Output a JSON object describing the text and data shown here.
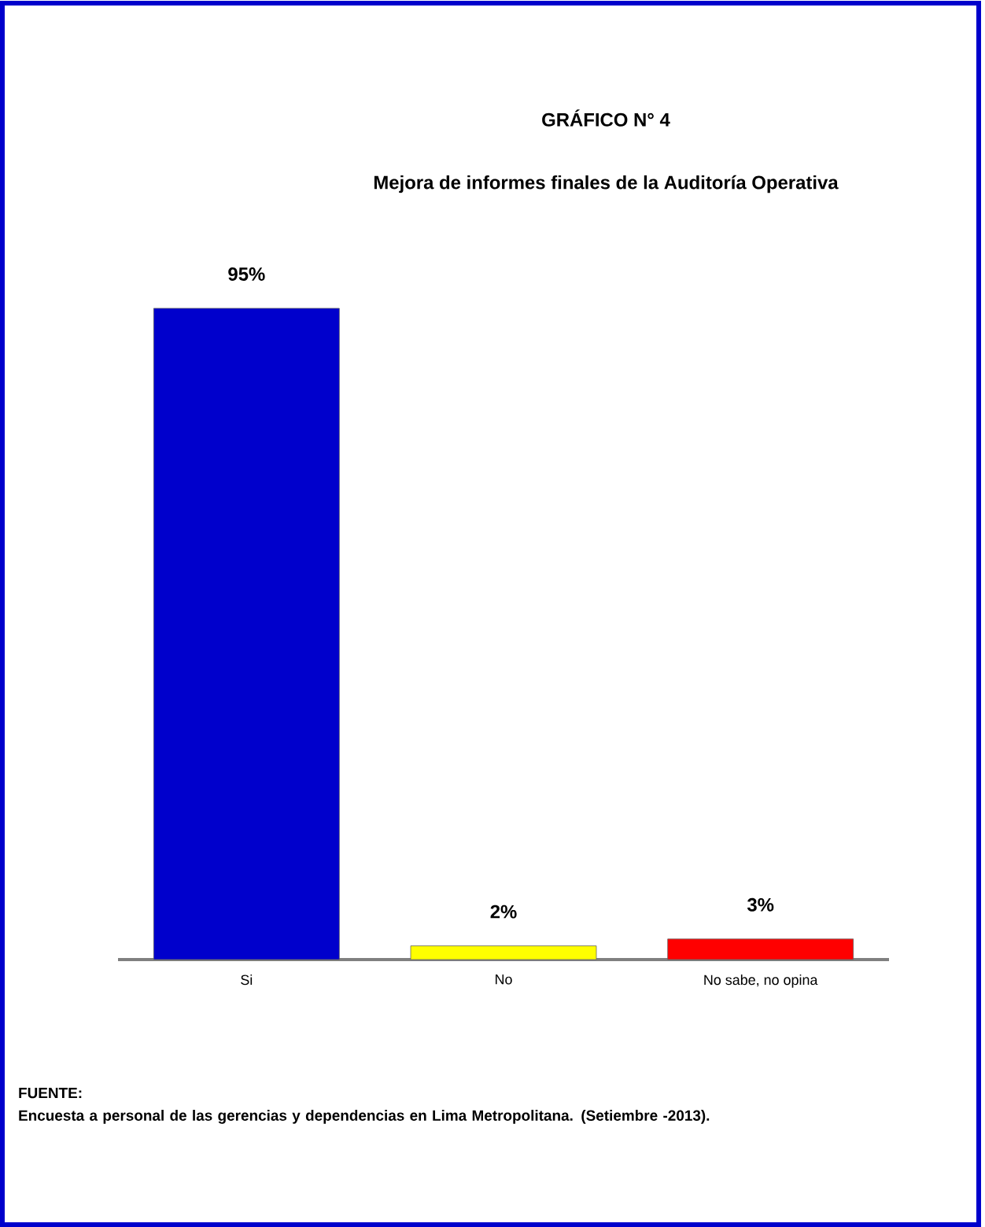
{
  "chart_data": {
    "type": "bar",
    "title": "GRÁFICO N° 4",
    "subtitle": "Mejora de informes finales de la Auditoría Operativa",
    "categories": [
      "Si",
      "No",
      "No sabe, no opina"
    ],
    "values": [
      95,
      2,
      3
    ],
    "colors": [
      "#0000cc",
      "#ffff00",
      "#ff0000"
    ],
    "value_labels": [
      "95%",
      "2%",
      "3%"
    ],
    "ylim": [
      0,
      95
    ],
    "annotations": [
      "FUENTE:",
      "Encuesta a personal de las gerencias y dependencias en Lima Metropolitana. (Setiembre -2013)."
    ]
  }
}
